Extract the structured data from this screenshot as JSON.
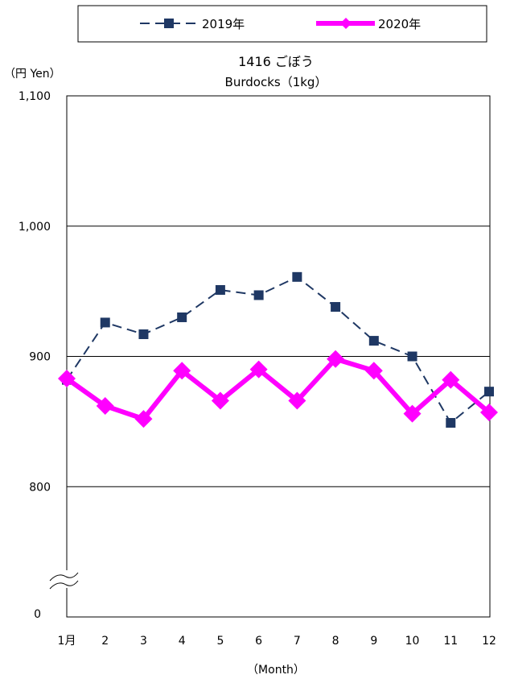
{
  "chart_data": {
    "type": "line",
    "title": "1416 ごぼう",
    "subtitle": "Burdocks（1kg）",
    "ylabel": "（円 Yen）",
    "xlabel": "（Month）",
    "ylim": [
      700,
      1100
    ],
    "axis_break_bottom_label": "0",
    "yticks": [
      {
        "value": 1100,
        "label": "1,100"
      },
      {
        "value": 1000,
        "label": "1,000"
      },
      {
        "value": 900,
        "label": "900"
      },
      {
        "value": 800,
        "label": "800"
      }
    ],
    "categories": [
      "1月",
      "2",
      "3",
      "4",
      "5",
      "6",
      "7",
      "8",
      "9",
      "10",
      "11",
      "12"
    ],
    "legend_position": "top",
    "grid": true,
    "series": [
      {
        "name": "2019年",
        "color": "#1f3864",
        "style": "dashed",
        "marker": "square",
        "values": [
          882,
          926,
          917,
          930,
          951,
          947,
          961,
          938,
          912,
          900,
          849,
          873
        ]
      },
      {
        "name": "2020年",
        "color": "#ff00ff",
        "style": "solid",
        "marker": "diamond",
        "values": [
          883,
          862,
          852,
          889,
          866,
          890,
          866,
          898,
          889,
          856,
          882,
          857
        ]
      }
    ]
  }
}
